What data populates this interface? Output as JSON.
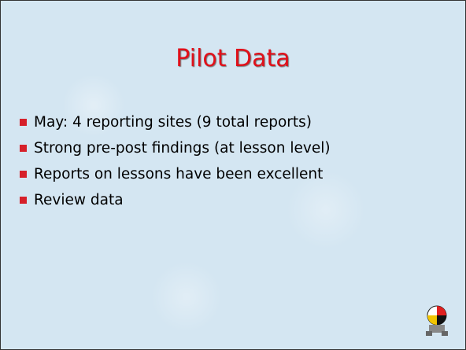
{
  "slide": {
    "title": "Pilot Data",
    "bullets": [
      "May: 4 reporting sites (9 total reports)",
      "Strong pre-post findings (at lesson level)",
      "Reports on lessons have been excellent",
      "Review data"
    ]
  }
}
